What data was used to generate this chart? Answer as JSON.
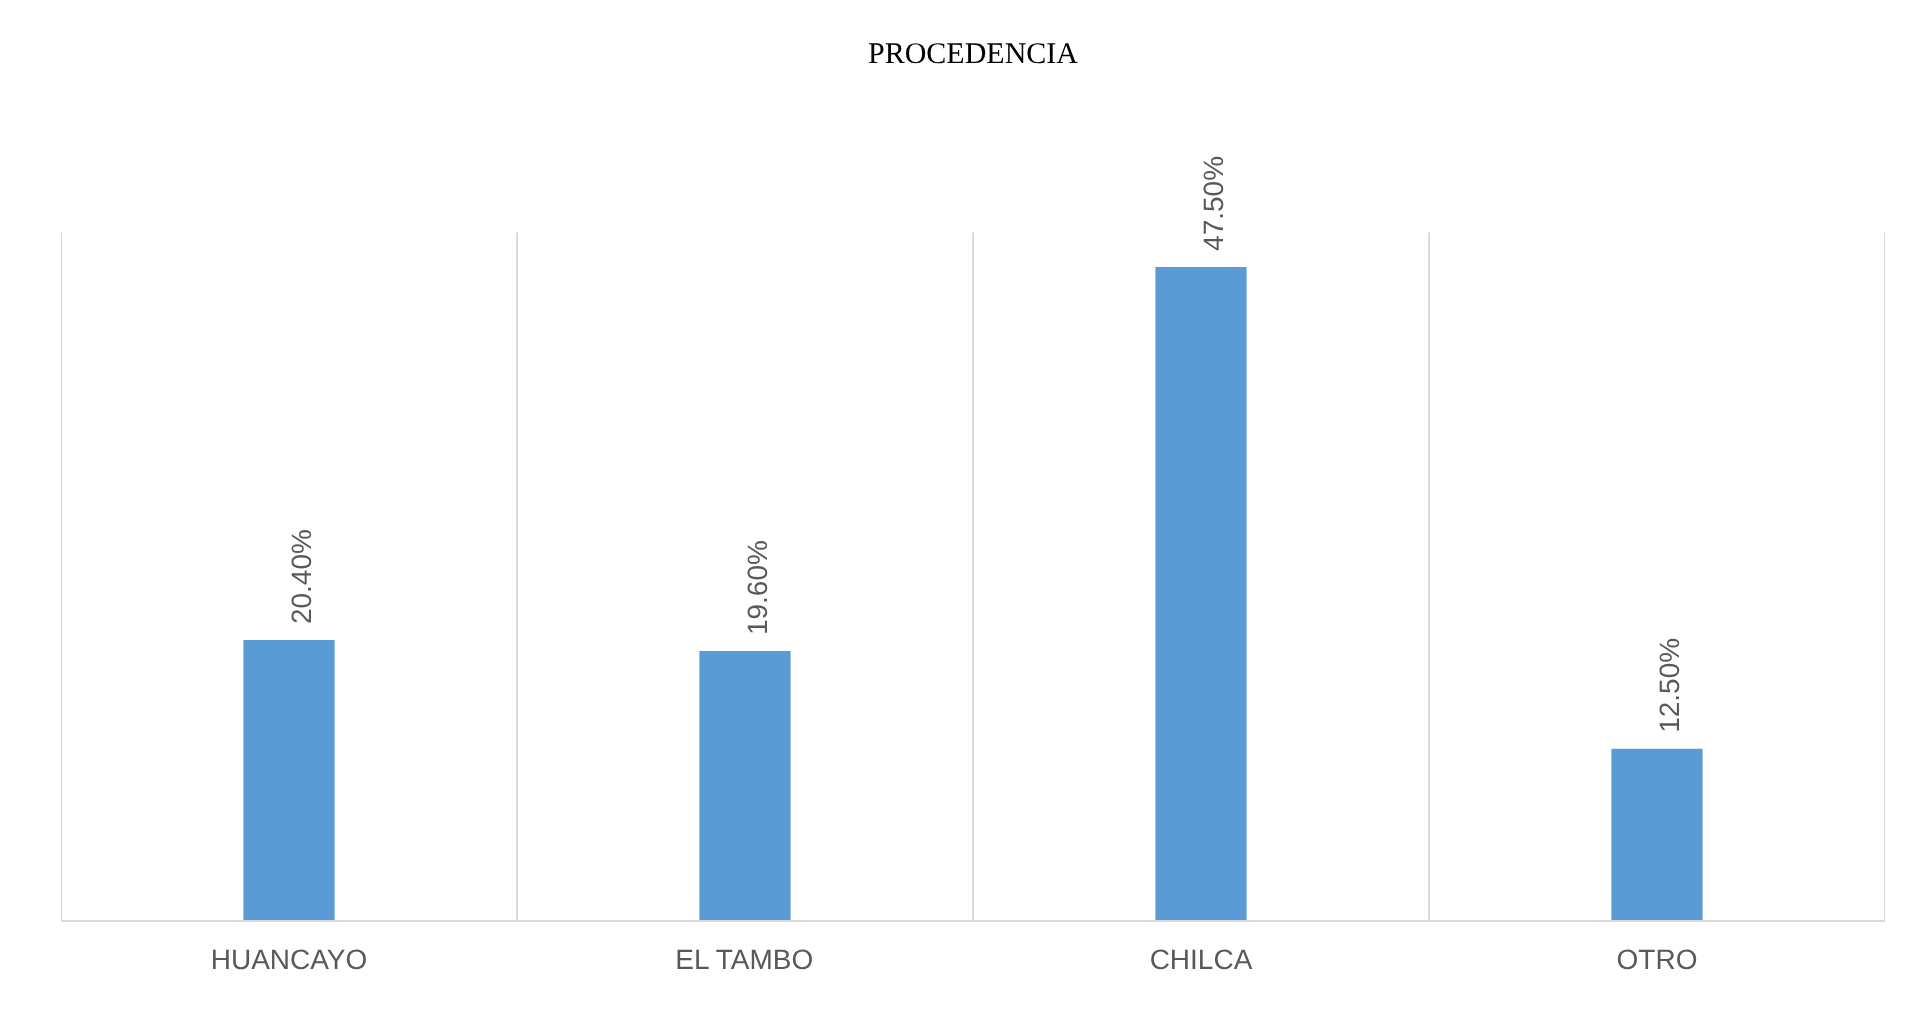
{
  "chart_data": {
    "type": "bar",
    "title": "PROCEDENCIA",
    "categories": [
      "HUANCAYO",
      "EL TAMBO",
      "CHILCA",
      "OTRO"
    ],
    "values": [
      20.4,
      19.6,
      47.5,
      12.5
    ],
    "value_labels": [
      "20.40%",
      "19.60%",
      "47.50%",
      "12.50%"
    ],
    "color": "#5b9bd5",
    "ylim": [
      0,
      50
    ],
    "grid": "x"
  }
}
